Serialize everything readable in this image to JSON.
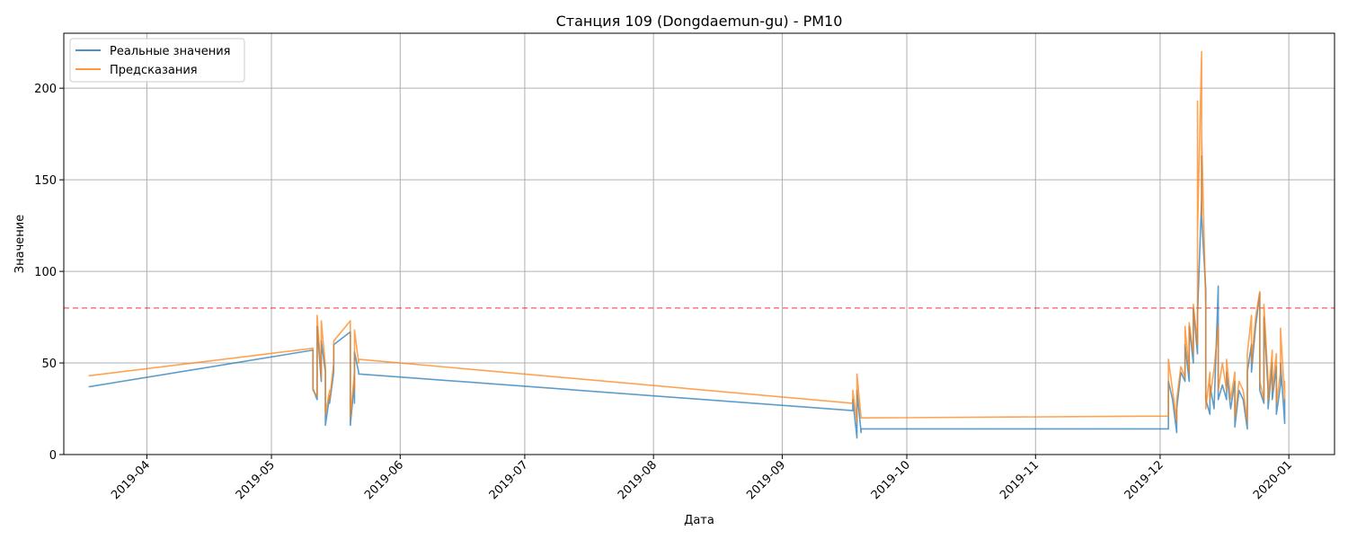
{
  "chart_data": {
    "type": "line",
    "title": "Станция 109 (Dongdaemun-gu) - PM10",
    "xlabel": "Дата",
    "ylabel": "Значение",
    "x_axis": "date",
    "xlim": [
      "2019-03-12",
      "2020-01-12"
    ],
    "ylim": [
      0,
      230
    ],
    "x_ticks": [
      "2019-04-01",
      "2019-05-01",
      "2019-06-01",
      "2019-07-01",
      "2019-08-01",
      "2019-09-01",
      "2019-10-01",
      "2019-11-01",
      "2019-12-01",
      "2020-01-01"
    ],
    "x_tick_labels": [
      "2019-04",
      "2019-05",
      "2019-06",
      "2019-07",
      "2019-08",
      "2019-09",
      "2019-10",
      "2019-11",
      "2019-12",
      "2020-01"
    ],
    "y_ticks": [
      0,
      50,
      100,
      150,
      200
    ],
    "y_tick_labels": [
      "0",
      "50",
      "100",
      "150",
      "200"
    ],
    "grid": true,
    "legend_position": "top-left",
    "threshold": {
      "value": 80,
      "color": "#ff0000",
      "style": "dashed"
    },
    "series": [
      {
        "name": "Реальные значения",
        "color": "#1f77b4",
        "points": [
          [
            "2019-03-18",
            37
          ],
          [
            "2019-05-11",
            57
          ],
          [
            "2019-05-11",
            36
          ],
          [
            "2019-05-12",
            30
          ],
          [
            "2019-05-12",
            70
          ],
          [
            "2019-05-13",
            40
          ],
          [
            "2019-05-13",
            62
          ],
          [
            "2019-05-14",
            45
          ],
          [
            "2019-05-14",
            16
          ],
          [
            "2019-05-15",
            32
          ],
          [
            "2019-05-15",
            28
          ],
          [
            "2019-05-16",
            45
          ],
          [
            "2019-05-16",
            60
          ],
          [
            "2019-05-20",
            67
          ],
          [
            "2019-05-20",
            16
          ],
          [
            "2019-05-21",
            40
          ],
          [
            "2019-05-21",
            28
          ],
          [
            "2019-05-21",
            56
          ],
          [
            "2019-05-22",
            45
          ],
          [
            "2019-05-22",
            44
          ],
          [
            "2019-09-18",
            24
          ],
          [
            "2019-09-18",
            30
          ],
          [
            "2019-09-19",
            9
          ],
          [
            "2019-09-19",
            35
          ],
          [
            "2019-09-20",
            12
          ],
          [
            "2019-09-20",
            14
          ],
          [
            "2019-12-03",
            14
          ],
          [
            "2019-12-03",
            40
          ],
          [
            "2019-12-04",
            30
          ],
          [
            "2019-12-05",
            12
          ],
          [
            "2019-12-05",
            25
          ],
          [
            "2019-12-06",
            45
          ],
          [
            "2019-12-07",
            40
          ],
          [
            "2019-12-07",
            60
          ],
          [
            "2019-12-08",
            40
          ],
          [
            "2019-12-08",
            70
          ],
          [
            "2019-12-09",
            50
          ],
          [
            "2019-12-09",
            80
          ],
          [
            "2019-12-10",
            55
          ],
          [
            "2019-12-10",
            76
          ],
          [
            "2019-12-11",
            140
          ],
          [
            "2019-12-11",
            163
          ],
          [
            "2019-12-11",
            130
          ],
          [
            "2019-12-12",
            90
          ],
          [
            "2019-12-12",
            30
          ],
          [
            "2019-12-13",
            22
          ],
          [
            "2019-12-13",
            38
          ],
          [
            "2019-12-14",
            25
          ],
          [
            "2019-12-15",
            92
          ],
          [
            "2019-12-15",
            30
          ],
          [
            "2019-12-16",
            38
          ],
          [
            "2019-12-17",
            30
          ],
          [
            "2019-12-17",
            45
          ],
          [
            "2019-12-18",
            25
          ],
          [
            "2019-12-19",
            40
          ],
          [
            "2019-12-19",
            15
          ],
          [
            "2019-12-20",
            35
          ],
          [
            "2019-12-21",
            30
          ],
          [
            "2019-12-22",
            14
          ],
          [
            "2019-12-22",
            45
          ],
          [
            "2019-12-23",
            60
          ],
          [
            "2019-12-23",
            45
          ],
          [
            "2019-12-24",
            70
          ],
          [
            "2019-12-25",
            88
          ],
          [
            "2019-12-25",
            35
          ],
          [
            "2019-12-26",
            28
          ],
          [
            "2019-12-26",
            75
          ],
          [
            "2019-12-27",
            35
          ],
          [
            "2019-12-27",
            25
          ],
          [
            "2019-12-28",
            50
          ],
          [
            "2019-12-28",
            30
          ],
          [
            "2019-12-29",
            48
          ],
          [
            "2019-12-29",
            22
          ],
          [
            "2019-12-30",
            38
          ],
          [
            "2019-12-30",
            50
          ],
          [
            "2019-12-31",
            17
          ],
          [
            "2019-12-31",
            30
          ],
          [
            "2019-12-31",
            20
          ]
        ]
      },
      {
        "name": "Предсказания",
        "color": "#ff7f0e",
        "points": [
          [
            "2019-03-18",
            43
          ],
          [
            "2019-05-11",
            58
          ],
          [
            "2019-05-11",
            35
          ],
          [
            "2019-05-12",
            32
          ],
          [
            "2019-05-12",
            76
          ],
          [
            "2019-05-13",
            42
          ],
          [
            "2019-05-13",
            73
          ],
          [
            "2019-05-14",
            48
          ],
          [
            "2019-05-14",
            22
          ],
          [
            "2019-05-15",
            35
          ],
          [
            "2019-05-15",
            30
          ],
          [
            "2019-05-16",
            50
          ],
          [
            "2019-05-16",
            62
          ],
          [
            "2019-05-20",
            73
          ],
          [
            "2019-05-20",
            20
          ],
          [
            "2019-05-21",
            45
          ],
          [
            "2019-05-21",
            35
          ],
          [
            "2019-05-21",
            68
          ],
          [
            "2019-05-22",
            50
          ],
          [
            "2019-05-22",
            52
          ],
          [
            "2019-09-18",
            28
          ],
          [
            "2019-09-18",
            35
          ],
          [
            "2019-09-19",
            18
          ],
          [
            "2019-09-19",
            44
          ],
          [
            "2019-09-20",
            20
          ],
          [
            "2019-12-03",
            21
          ],
          [
            "2019-12-03",
            52
          ],
          [
            "2019-12-04",
            35
          ],
          [
            "2019-12-05",
            18
          ],
          [
            "2019-12-05",
            30
          ],
          [
            "2019-12-06",
            48
          ],
          [
            "2019-12-07",
            42
          ],
          [
            "2019-12-07",
            70
          ],
          [
            "2019-12-08",
            45
          ],
          [
            "2019-12-08",
            72
          ],
          [
            "2019-12-09",
            55
          ],
          [
            "2019-12-09",
            82
          ],
          [
            "2019-12-10",
            60
          ],
          [
            "2019-12-10",
            193
          ],
          [
            "2019-12-10",
            120
          ],
          [
            "2019-12-11",
            220
          ],
          [
            "2019-12-11",
            130
          ],
          [
            "2019-12-11",
            175
          ],
          [
            "2019-12-12",
            80
          ],
          [
            "2019-12-12",
            25
          ],
          [
            "2019-12-13",
            45
          ],
          [
            "2019-12-13",
            30
          ],
          [
            "2019-12-14",
            47
          ],
          [
            "2019-12-15",
            70
          ],
          [
            "2019-12-15",
            35
          ],
          [
            "2019-12-16",
            50
          ],
          [
            "2019-12-17",
            35
          ],
          [
            "2019-12-17",
            52
          ],
          [
            "2019-12-18",
            30
          ],
          [
            "2019-12-19",
            45
          ],
          [
            "2019-12-19",
            20
          ],
          [
            "2019-12-20",
            40
          ],
          [
            "2019-12-21",
            35
          ],
          [
            "2019-12-22",
            18
          ],
          [
            "2019-12-22",
            55
          ],
          [
            "2019-12-23",
            76
          ],
          [
            "2019-12-23",
            50
          ],
          [
            "2019-12-24",
            75
          ],
          [
            "2019-12-25",
            89
          ],
          [
            "2019-12-25",
            40
          ],
          [
            "2019-12-26",
            30
          ],
          [
            "2019-12-26",
            82
          ],
          [
            "2019-12-27",
            40
          ],
          [
            "2019-12-27",
            30
          ],
          [
            "2019-12-28",
            57
          ],
          [
            "2019-12-28",
            35
          ],
          [
            "2019-12-29",
            55
          ],
          [
            "2019-12-29",
            28
          ],
          [
            "2019-12-30",
            45
          ],
          [
            "2019-12-30",
            69
          ],
          [
            "2019-12-31",
            30
          ],
          [
            "2019-12-31",
            40
          ],
          [
            "2019-12-31",
            38
          ]
        ]
      }
    ]
  }
}
